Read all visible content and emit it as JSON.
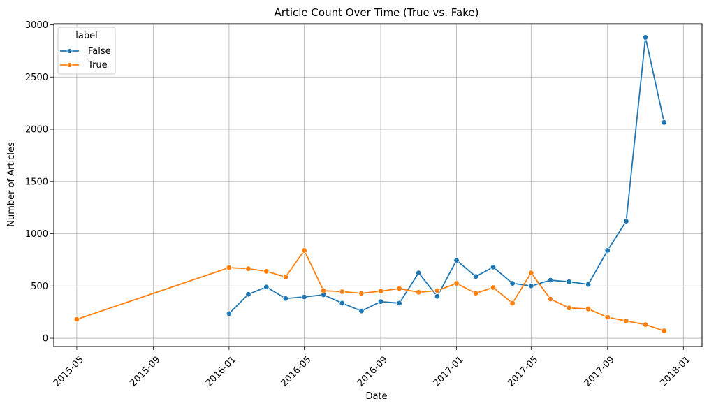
{
  "chart_data": {
    "type": "line",
    "title": "Article Count Over Time (True vs. Fake)",
    "xlabel": "Date",
    "ylabel": "Number of Articles",
    "xlim": [
      "2015-03-25",
      "2018-01-31"
    ],
    "ylim": [
      -80,
      3010
    ],
    "x_ticks": [
      "2015-05",
      "2015-09",
      "2016-01",
      "2016-05",
      "2016-09",
      "2017-01",
      "2017-05",
      "2017-09",
      "2018-01"
    ],
    "y_ticks": [
      0,
      500,
      1000,
      1500,
      2000,
      2500,
      3000
    ],
    "grid": true,
    "legend": {
      "title": "label",
      "placement": "top-left"
    },
    "series": [
      {
        "name": "False",
        "color": "#1f77b4",
        "x": [
          "2016-01-01",
          "2016-02-01",
          "2016-03-01",
          "2016-04-01",
          "2016-05-01",
          "2016-06-01",
          "2016-07-01",
          "2016-08-01",
          "2016-09-01",
          "2016-10-01",
          "2016-11-01",
          "2016-12-01",
          "2017-01-01",
          "2017-02-01",
          "2017-03-01",
          "2017-04-01",
          "2017-05-01",
          "2017-06-01",
          "2017-07-01",
          "2017-08-01",
          "2017-09-01",
          "2017-10-01",
          "2017-11-01",
          "2017-12-01"
        ],
        "y": [
          235,
          420,
          490,
          380,
          395,
          415,
          335,
          260,
          350,
          335,
          625,
          400,
          745,
          590,
          680,
          525,
          500,
          555,
          540,
          515,
          840,
          1120,
          2880,
          2065
        ]
      },
      {
        "name": "True",
        "color": "#ff7f0e",
        "x": [
          "2015-05-01",
          "2016-01-01",
          "2016-02-01",
          "2016-03-01",
          "2016-04-01",
          "2016-05-01",
          "2016-06-01",
          "2016-07-01",
          "2016-08-01",
          "2016-09-01",
          "2016-10-01",
          "2016-11-01",
          "2016-12-01",
          "2017-01-01",
          "2017-02-01",
          "2017-03-01",
          "2017-04-01",
          "2017-05-01",
          "2017-06-01",
          "2017-07-01",
          "2017-08-01",
          "2017-09-01",
          "2017-10-01",
          "2017-11-01",
          "2017-12-01"
        ],
        "y": [
          180,
          675,
          665,
          640,
          585,
          840,
          455,
          445,
          430,
          450,
          475,
          440,
          455,
          525,
          430,
          485,
          335,
          625,
          375,
          290,
          280,
          200,
          165,
          130,
          70
        ]
      }
    ]
  }
}
